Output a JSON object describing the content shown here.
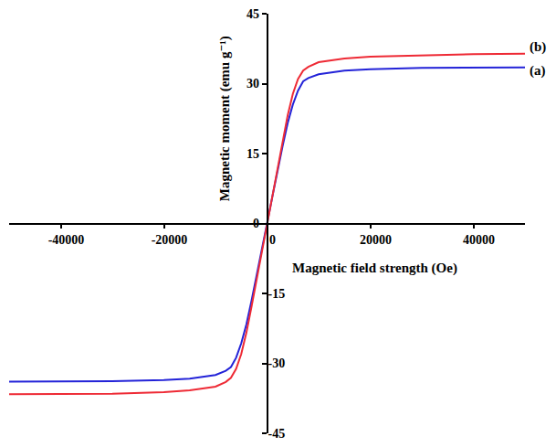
{
  "chart_data": {
    "type": "line",
    "x_label": "Magnetic field strength (Oe)",
    "y_label": "Magnetic moment (emu g⁻¹)",
    "x": [
      -50000,
      -40000,
      -30000,
      -20000,
      -15000,
      -10000,
      -8000,
      -7000,
      -6000,
      -5000,
      -4000,
      -3000,
      -2000,
      -1000,
      0,
      1000,
      2000,
      3000,
      4000,
      5000,
      6000,
      7000,
      8000,
      10000,
      15000,
      20000,
      30000,
      40000,
      50000
    ],
    "series": [
      {
        "name": "(a)",
        "color": "#2323d8",
        "values": [
          -33.9,
          -33.9,
          -33.8,
          -33.6,
          -33.3,
          -32.5,
          -31.6,
          -30.8,
          -28.8,
          -25.7,
          -21.6,
          -16.5,
          -11.2,
          -5.6,
          0,
          5.6,
          11.2,
          16.5,
          21.5,
          25.5,
          28.5,
          30.5,
          31.2,
          32.0,
          32.8,
          33.1,
          33.4,
          33.5,
          33.5
        ]
      },
      {
        "name": "(b)",
        "color": "#ee2a35",
        "values": [
          -36.6,
          -36.6,
          -36.5,
          -36.2,
          -35.8,
          -35.0,
          -34.0,
          -33.1,
          -31.2,
          -28.0,
          -23.4,
          -17.8,
          -12.0,
          -6.0,
          0,
          5.9,
          11.8,
          17.6,
          23.2,
          27.8,
          31.0,
          32.8,
          33.6,
          34.6,
          35.4,
          35.8,
          36.1,
          36.3,
          36.4
        ]
      }
    ],
    "xlim": [
      -50000,
      50000
    ],
    "xticks": [
      -40000,
      -20000,
      0,
      20000,
      40000
    ],
    "ylim": [
      -45,
      45
    ],
    "yticks": [
      -45,
      -30,
      -15,
      0,
      15,
      30,
      45
    ],
    "grid": false
  }
}
